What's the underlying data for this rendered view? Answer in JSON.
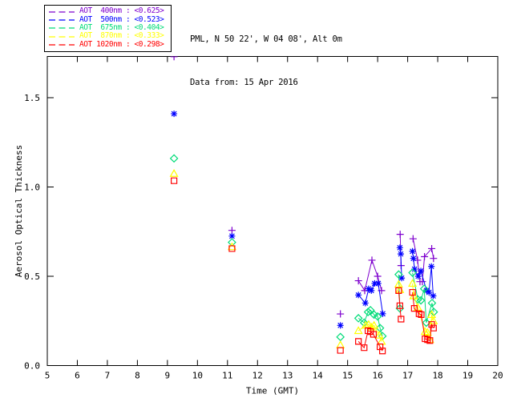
{
  "header": {
    "line1": "PML, N 50 22', W 04 08', Alt 0m",
    "line2": "Data from: 15 Apr 2016"
  },
  "legend": {
    "border_color": "#000000",
    "entries_note": "dashed line sample + colored label per series"
  },
  "colors": {
    "axis": "#000000",
    "background": "#ffffff",
    "aot_400": "#7e00ce",
    "aot_500": "#0000ff",
    "aot_675": "#00dc78",
    "aot_870": "#ffff00",
    "aot_1020": "#ff0000"
  },
  "chart_data": {
    "type": "line",
    "title": "",
    "xlabel": "Time (GMT)",
    "ylabel": "Aerosol Optical Thickness",
    "xlim": [
      5,
      20
    ],
    "ylim": [
      0,
      1.731
    ],
    "xticks": [
      5,
      6,
      7,
      8,
      9,
      10,
      11,
      12,
      13,
      14,
      15,
      16,
      17,
      18,
      19,
      20
    ],
    "yticks": [
      0.0,
      0.5,
      1.0,
      1.5
    ],
    "ytick_labels": [
      "0.0",
      "0.5",
      "1.0",
      "1.5"
    ],
    "grid": false,
    "legend_position": "top-left-outside",
    "gap_threshold_hours": 0.32,
    "series": [
      {
        "name": "AOT 400nm",
        "wavelength_nm": 400,
        "mean_value": "<0.625>",
        "legend_label": "AOT  400nm : <0.625>",
        "color": "#7e00ce",
        "marker": "plus",
        "points": [
          [
            9.22,
            1.73
          ],
          [
            11.15,
            0.757
          ],
          [
            14.76,
            0.289
          ],
          [
            15.36,
            0.475
          ],
          [
            15.57,
            0.42
          ],
          [
            15.81,
            0.59
          ],
          [
            16.0,
            0.5
          ],
          [
            16.13,
            0.42
          ],
          [
            16.75,
            0.735
          ],
          [
            16.78,
            0.56
          ],
          [
            17.18,
            0.71
          ],
          [
            17.33,
            0.59
          ],
          [
            17.41,
            0.47
          ],
          [
            17.49,
            0.47
          ],
          [
            17.56,
            0.61
          ],
          [
            17.8,
            0.655
          ],
          [
            17.86,
            0.6
          ]
        ]
      },
      {
        "name": "AOT 500nm",
        "wavelength_nm": 500,
        "mean_value": "<0.523>",
        "legend_label": "AOT  500nm : <0.523>",
        "color": "#0000ff",
        "marker": "asterisk",
        "points": [
          [
            9.22,
            1.41
          ],
          [
            11.15,
            0.725
          ],
          [
            14.76,
            0.225
          ],
          [
            15.36,
            0.395
          ],
          [
            15.59,
            0.35
          ],
          [
            15.7,
            0.43
          ],
          [
            15.79,
            0.42
          ],
          [
            15.9,
            0.46
          ],
          [
            16.02,
            0.46
          ],
          [
            16.17,
            0.29
          ],
          [
            16.74,
            0.66
          ],
          [
            16.77,
            0.625
          ],
          [
            16.8,
            0.49
          ],
          [
            17.16,
            0.64
          ],
          [
            17.19,
            0.6
          ],
          [
            17.23,
            0.54
          ],
          [
            17.35,
            0.5
          ],
          [
            17.44,
            0.53
          ],
          [
            17.63,
            0.42
          ],
          [
            17.71,
            0.41
          ],
          [
            17.79,
            0.555
          ],
          [
            17.85,
            0.39
          ]
        ]
      },
      {
        "name": "AOT 675nm",
        "wavelength_nm": 675,
        "mean_value": "<0.404>",
        "legend_label": "AOT  675nm : <0.404>",
        "color": "#00dc78",
        "marker": "diamond",
        "points": [
          [
            9.22,
            1.16
          ],
          [
            11.15,
            0.69
          ],
          [
            14.76,
            0.16
          ],
          [
            15.36,
            0.265
          ],
          [
            15.55,
            0.24
          ],
          [
            15.68,
            0.3
          ],
          [
            15.76,
            0.31
          ],
          [
            15.88,
            0.285
          ],
          [
            16.0,
            0.275
          ],
          [
            16.08,
            0.21
          ],
          [
            16.16,
            0.165
          ],
          [
            16.7,
            0.51
          ],
          [
            16.74,
            0.32
          ],
          [
            17.16,
            0.52
          ],
          [
            17.34,
            0.37
          ],
          [
            17.44,
            0.365
          ],
          [
            17.55,
            0.43
          ],
          [
            17.62,
            0.24
          ],
          [
            17.81,
            0.35
          ],
          [
            17.87,
            0.3
          ]
        ]
      },
      {
        "name": "AOT 870nm",
        "wavelength_nm": 870,
        "mean_value": "<0.333>",
        "legend_label": "AOT  870nm : <0.333>",
        "color": "#ffff00",
        "marker": "triangle",
        "points": [
          [
            9.22,
            1.075
          ],
          [
            11.15,
            0.665
          ],
          [
            14.76,
            0.115
          ],
          [
            15.36,
            0.195
          ],
          [
            15.6,
            0.225
          ],
          [
            15.7,
            0.23
          ],
          [
            15.79,
            0.215
          ],
          [
            15.88,
            0.225
          ],
          [
            16.05,
            0.17
          ],
          [
            16.13,
            0.135
          ],
          [
            16.7,
            0.455
          ],
          [
            16.74,
            0.425
          ],
          [
            17.16,
            0.46
          ],
          [
            17.2,
            0.39
          ],
          [
            17.34,
            0.325
          ],
          [
            17.58,
            0.19
          ],
          [
            17.66,
            0.185
          ],
          [
            17.74,
            0.145
          ],
          [
            17.8,
            0.285
          ],
          [
            17.86,
            0.25
          ]
        ]
      },
      {
        "name": "AOT 1020nm",
        "wavelength_nm": 1020,
        "mean_value": "<0.298>",
        "legend_label": "AOT 1020nm : <0.298>",
        "color": "#ff0000",
        "marker": "square",
        "points": [
          [
            9.22,
            1.035
          ],
          [
            11.15,
            0.655
          ],
          [
            14.76,
            0.085
          ],
          [
            15.36,
            0.135
          ],
          [
            15.55,
            0.1
          ],
          [
            15.68,
            0.195
          ],
          [
            15.76,
            0.19
          ],
          [
            15.86,
            0.175
          ],
          [
            16.08,
            0.105
          ],
          [
            16.16,
            0.082
          ],
          [
            16.7,
            0.42
          ],
          [
            16.74,
            0.335
          ],
          [
            16.78,
            0.26
          ],
          [
            17.16,
            0.41
          ],
          [
            17.22,
            0.32
          ],
          [
            17.38,
            0.29
          ],
          [
            17.45,
            0.285
          ],
          [
            17.58,
            0.15
          ],
          [
            17.66,
            0.145
          ],
          [
            17.74,
            0.14
          ],
          [
            17.8,
            0.23
          ],
          [
            17.86,
            0.21
          ]
        ]
      }
    ]
  }
}
